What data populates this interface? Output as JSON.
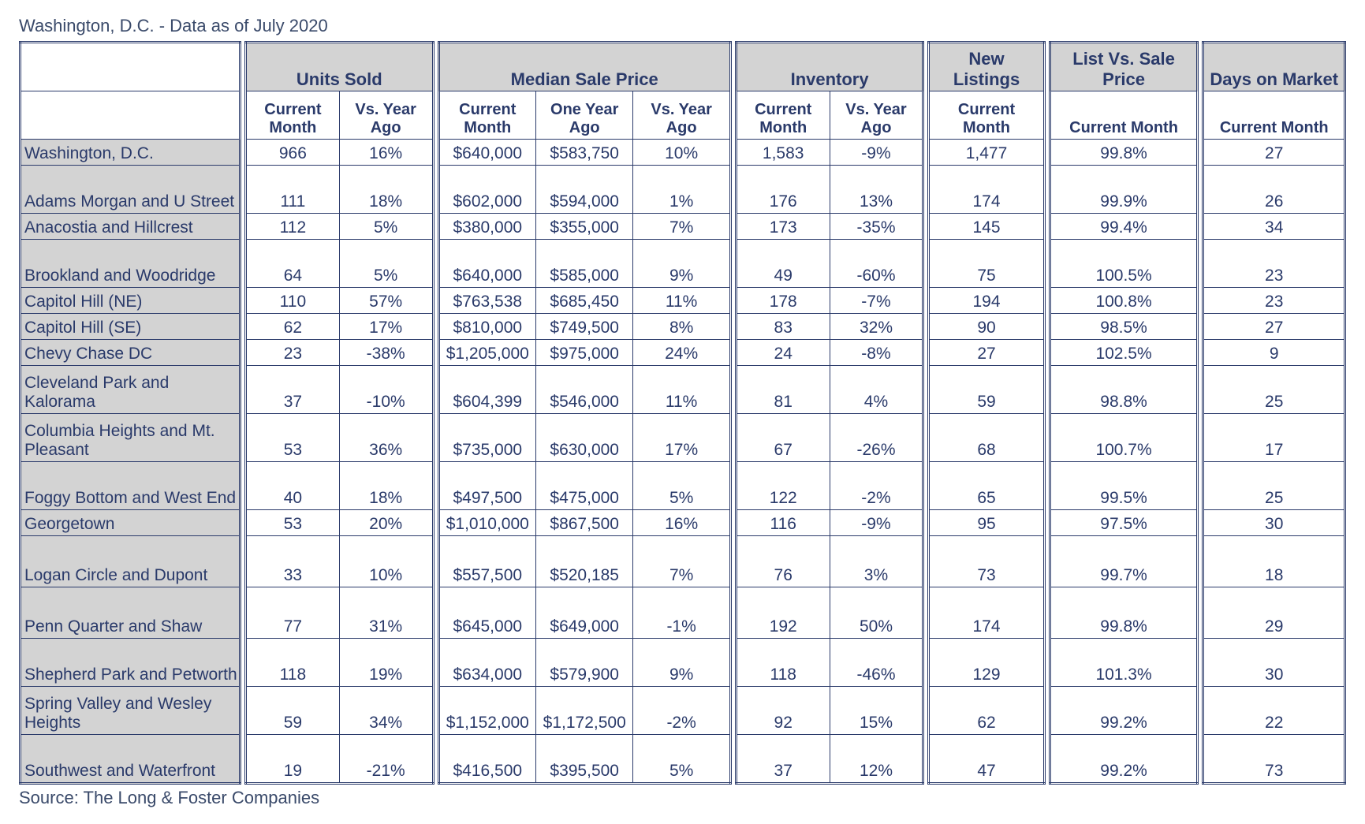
{
  "title": "Washington, D.C. - Data as of July 2020",
  "source": "Source: The Long & Foster Companies",
  "colors": {
    "border": "#2a3a6a",
    "header_bg": "#d3d3d3",
    "text": "#2a3a6a",
    "background": "#ffffff"
  },
  "column_groups": [
    {
      "label": "",
      "subs": [
        ""
      ]
    },
    {
      "label": "Units Sold",
      "subs": [
        "Current Month",
        "Vs. Year Ago"
      ]
    },
    {
      "label": "Median Sale Price",
      "subs": [
        "Current Month",
        "One Year Ago",
        "Vs. Year Ago"
      ]
    },
    {
      "label": "Inventory",
      "subs": [
        "Current Month",
        "Vs. Year Ago"
      ]
    },
    {
      "label": "New Listings",
      "subs": [
        "Current Month"
      ]
    },
    {
      "label": "List Vs. Sale Price",
      "subs": [
        "Current Month"
      ]
    },
    {
      "label": "Days on Market",
      "subs": [
        "Current Month"
      ]
    }
  ],
  "group_widths_pct": [
    17.0,
    14.5,
    22.5,
    14.5,
    9.0,
    11.5,
    11.0
  ],
  "rows": [
    {
      "label": "Washington, D.C.",
      "tall": false,
      "cells": [
        [
          "966",
          "16%"
        ],
        [
          "$640,000",
          "$583,750",
          "10%"
        ],
        [
          "1,583",
          "-9%"
        ],
        [
          "1,477"
        ],
        [
          "99.8%"
        ],
        [
          "27"
        ]
      ]
    },
    {
      "label": "Adams Morgan and U Street",
      "tall": true,
      "cells": [
        [
          "111",
          "18%"
        ],
        [
          "$602,000",
          "$594,000",
          "1%"
        ],
        [
          "176",
          "13%"
        ],
        [
          "174"
        ],
        [
          "99.9%"
        ],
        [
          "26"
        ]
      ]
    },
    {
      "label": "Anacostia and Hillcrest",
      "tall": false,
      "cells": [
        [
          "112",
          "5%"
        ],
        [
          "$380,000",
          "$355,000",
          "7%"
        ],
        [
          "173",
          "-35%"
        ],
        [
          "145"
        ],
        [
          "99.4%"
        ],
        [
          "34"
        ]
      ]
    },
    {
      "label": "Brookland and Woodridge",
      "tall": true,
      "cells": [
        [
          "64",
          "5%"
        ],
        [
          "$640,000",
          "$585,000",
          "9%"
        ],
        [
          "49",
          "-60%"
        ],
        [
          "75"
        ],
        [
          "100.5%"
        ],
        [
          "23"
        ]
      ]
    },
    {
      "label": "Capitol Hill (NE)",
      "tall": false,
      "cells": [
        [
          "110",
          "57%"
        ],
        [
          "$763,538",
          "$685,450",
          "11%"
        ],
        [
          "178",
          "-7%"
        ],
        [
          "194"
        ],
        [
          "100.8%"
        ],
        [
          "23"
        ]
      ]
    },
    {
      "label": "Capitol Hill (SE)",
      "tall": false,
      "cells": [
        [
          "62",
          "17%"
        ],
        [
          "$810,000",
          "$749,500",
          "8%"
        ],
        [
          "83",
          "32%"
        ],
        [
          "90"
        ],
        [
          "98.5%"
        ],
        [
          "27"
        ]
      ]
    },
    {
      "label": "Chevy Chase DC",
      "tall": false,
      "cells": [
        [
          "23",
          "-38%"
        ],
        [
          "$1,205,000",
          "$975,000",
          "24%"
        ],
        [
          "24",
          "-8%"
        ],
        [
          "27"
        ],
        [
          "102.5%"
        ],
        [
          "9"
        ]
      ]
    },
    {
      "label": "Cleveland Park and Kalorama",
      "tall": true,
      "cells": [
        [
          "37",
          "-10%"
        ],
        [
          "$604,399",
          "$546,000",
          "11%"
        ],
        [
          "81",
          "4%"
        ],
        [
          "59"
        ],
        [
          "98.8%"
        ],
        [
          "25"
        ]
      ]
    },
    {
      "label": "Columbia Heights and Mt. Pleasant",
      "tall": true,
      "cells": [
        [
          "53",
          "36%"
        ],
        [
          "$735,000",
          "$630,000",
          "17%"
        ],
        [
          "67",
          "-26%"
        ],
        [
          "68"
        ],
        [
          "100.7%"
        ],
        [
          "17"
        ]
      ]
    },
    {
      "label": "Foggy Bottom and West End",
      "tall": true,
      "cells": [
        [
          "40",
          "18%"
        ],
        [
          "$497,500",
          "$475,000",
          "5%"
        ],
        [
          "122",
          "-2%"
        ],
        [
          "65"
        ],
        [
          "99.5%"
        ],
        [
          "25"
        ]
      ]
    },
    {
      "label": "Georgetown",
      "tall": false,
      "cells": [
        [
          "53",
          "20%"
        ],
        [
          "$1,010,000",
          "$867,500",
          "16%"
        ],
        [
          "116",
          "-9%"
        ],
        [
          "95"
        ],
        [
          "97.5%"
        ],
        [
          "30"
        ]
      ]
    },
    {
      "label": "Logan Circle and Dupont",
      "tall": true,
      "taller": true,
      "cells": [
        [
          "33",
          "10%"
        ],
        [
          "$557,500",
          "$520,185",
          "7%"
        ],
        [
          "76",
          "3%"
        ],
        [
          "73"
        ],
        [
          "99.7%"
        ],
        [
          "18"
        ]
      ]
    },
    {
      "label": "Penn Quarter and Shaw",
      "tall": true,
      "taller": true,
      "cells": [
        [
          "77",
          "31%"
        ],
        [
          "$645,000",
          "$649,000",
          "-1%"
        ],
        [
          "192",
          "50%"
        ],
        [
          "174"
        ],
        [
          "99.8%"
        ],
        [
          "29"
        ]
      ]
    },
    {
      "label": "Shepherd Park and Petworth",
      "tall": true,
      "cells": [
        [
          "118",
          "19%"
        ],
        [
          "$634,000",
          "$579,900",
          "9%"
        ],
        [
          "118",
          "-46%"
        ],
        [
          "129"
        ],
        [
          "101.3%"
        ],
        [
          "30"
        ]
      ]
    },
    {
      "label": "Spring Valley and Wesley Heights",
      "tall": true,
      "cells": [
        [
          "59",
          "34%"
        ],
        [
          "$1,152,000",
          "$1,172,500",
          "-2%"
        ],
        [
          "92",
          "15%"
        ],
        [
          "62"
        ],
        [
          "99.2%"
        ],
        [
          "22"
        ]
      ]
    },
    {
      "label": "Southwest and Waterfront",
      "tall": true,
      "cells": [
        [
          "19",
          "-21%"
        ],
        [
          "$416,500",
          "$395,500",
          "5%"
        ],
        [
          "37",
          "12%"
        ],
        [
          "47"
        ],
        [
          "99.2%"
        ],
        [
          "73"
        ]
      ]
    }
  ]
}
